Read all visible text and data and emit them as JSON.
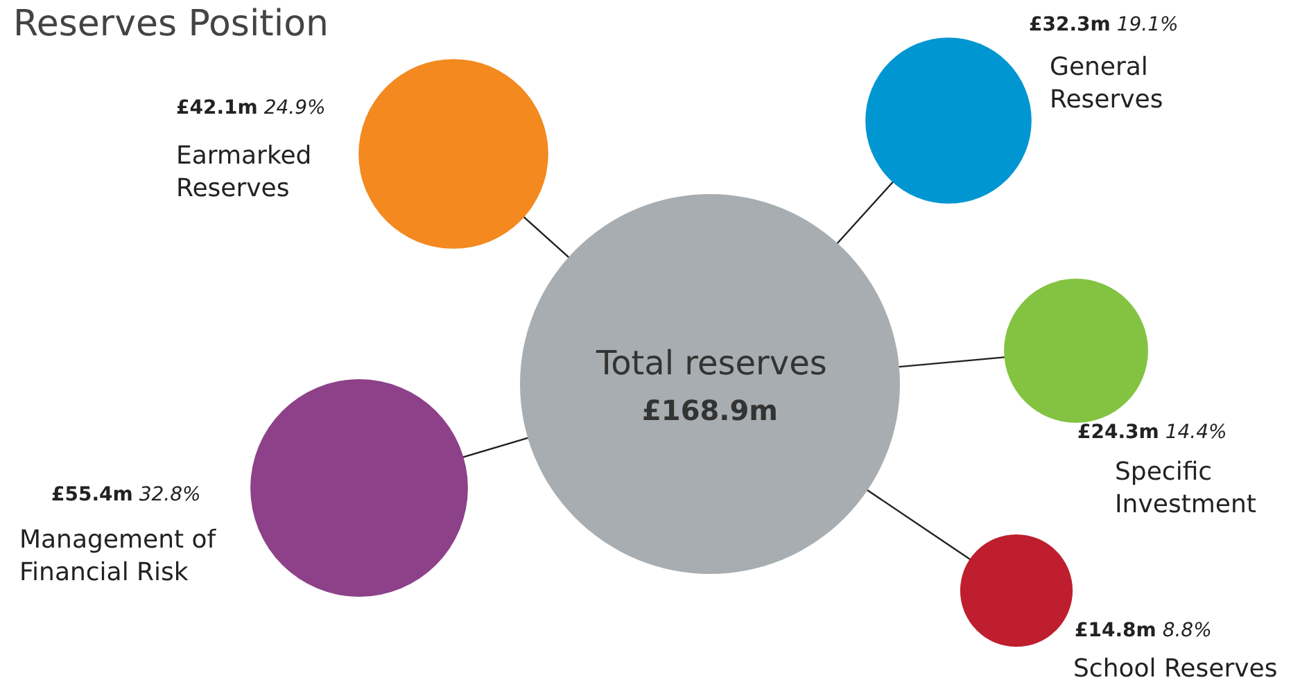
{
  "chart_data": {
    "type": "other",
    "title": "Reserves Position",
    "categories": [
      "Total reserves",
      "Earmarked Reserves",
      "General Reserves",
      "Specific Investment",
      "Management of Financial Risk",
      "School Reserves"
    ],
    "series": [
      {
        "values": [
          168.9,
          42.1,
          32.3,
          24.3,
          55.4,
          14.8
        ],
        "value_labels": [
          "£168.9m",
          "£42.1m",
          "£32.3m",
          "£24.3m",
          "£55.4m",
          "£14.8m"
        ]
      },
      {
        "values": [
          null,
          24.9,
          19.1,
          14.4,
          32.8,
          8.8
        ],
        "value_labels": [
          null,
          "24.9%",
          "19.1%",
          "14.4%",
          "32.8%",
          "8.8%"
        ]
      }
    ],
    "colors": [
      "#a7adb0",
      "#f3891f",
      "#0096d1",
      "#84c341",
      "#8d4189",
      "#be1e2d"
    ]
  }
}
